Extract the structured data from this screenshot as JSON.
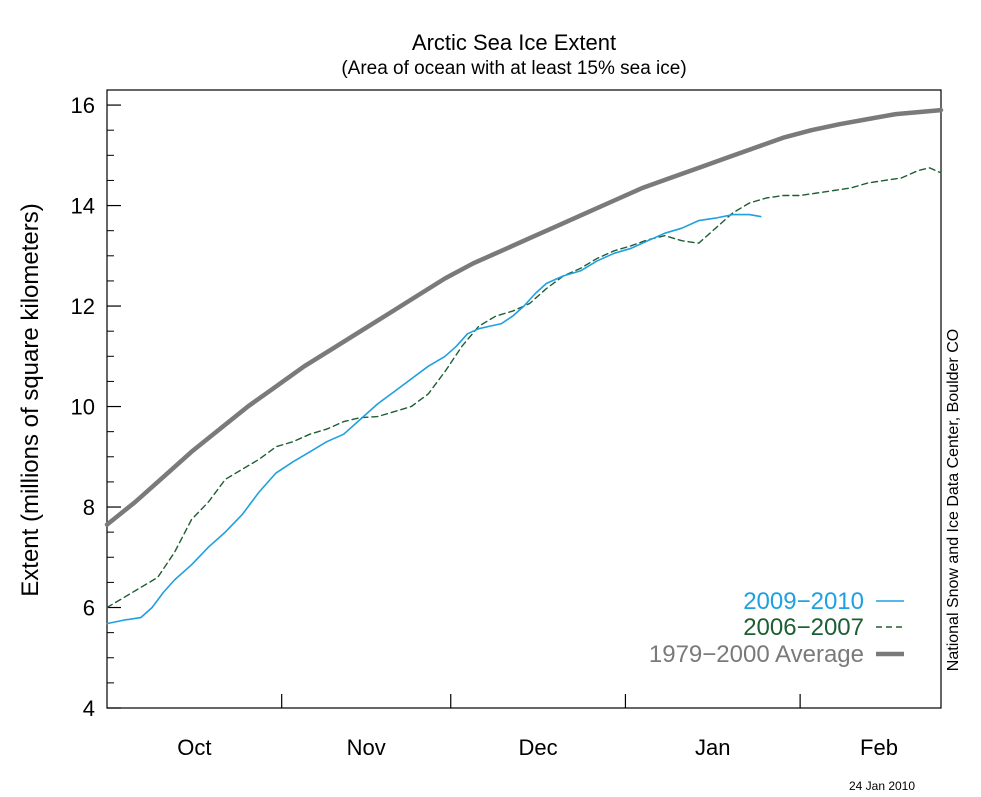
{
  "chart_data": {
    "type": "line",
    "title": "Arctic Sea Ice Extent",
    "subtitle": "(Area of ocean with at least 15% sea ice)",
    "ylabel": "Extent (millions of square kilometers)",
    "ylim": [
      4,
      16.3
    ],
    "yticks": [
      "4",
      "6",
      "8",
      "10",
      "12",
      "14",
      "16"
    ],
    "xlim": [
      0,
      148
    ],
    "month_labels": [
      "Oct",
      "Nov",
      "Dec",
      "Jan",
      "Feb"
    ],
    "grid": false,
    "legend_position": "bottom-right",
    "series": [
      {
        "name": "2009−2010",
        "color": "#1fa0e0",
        "style": "solid",
        "width": 1.6,
        "points": [
          [
            0,
            5.68
          ],
          [
            3,
            5.75
          ],
          [
            6,
            5.8
          ],
          [
            8,
            6.0
          ],
          [
            10,
            6.3
          ],
          [
            12,
            6.55
          ],
          [
            15,
            6.85
          ],
          [
            18,
            7.2
          ],
          [
            21,
            7.5
          ],
          [
            24,
            7.85
          ],
          [
            27,
            8.3
          ],
          [
            30,
            8.68
          ],
          [
            33,
            8.9
          ],
          [
            36,
            9.1
          ],
          [
            39,
            9.3
          ],
          [
            42,
            9.45
          ],
          [
            45,
            9.75
          ],
          [
            48,
            10.05
          ],
          [
            51,
            10.3
          ],
          [
            54,
            10.55
          ],
          [
            57,
            10.8
          ],
          [
            60,
            11.0
          ],
          [
            62,
            11.2
          ],
          [
            64,
            11.45
          ],
          [
            66,
            11.55
          ],
          [
            68,
            11.6
          ],
          [
            70,
            11.65
          ],
          [
            72,
            11.8
          ],
          [
            74,
            12.0
          ],
          [
            76,
            12.25
          ],
          [
            78,
            12.45
          ],
          [
            81,
            12.6
          ],
          [
            84,
            12.7
          ],
          [
            87,
            12.9
          ],
          [
            90,
            13.05
          ],
          [
            93,
            13.15
          ],
          [
            96,
            13.3
          ],
          [
            99,
            13.45
          ],
          [
            102,
            13.55
          ],
          [
            105,
            13.7
          ],
          [
            108,
            13.75
          ],
          [
            111,
            13.82
          ],
          [
            114,
            13.82
          ],
          [
            116,
            13.78
          ]
        ]
      },
      {
        "name": "2006−2007",
        "color": "#1e5e34",
        "style": "dashed",
        "width": 1.4,
        "points": [
          [
            0,
            6.0
          ],
          [
            3,
            6.2
          ],
          [
            6,
            6.4
          ],
          [
            9,
            6.6
          ],
          [
            12,
            7.1
          ],
          [
            15,
            7.75
          ],
          [
            18,
            8.1
          ],
          [
            21,
            8.55
          ],
          [
            24,
            8.75
          ],
          [
            27,
            8.95
          ],
          [
            30,
            9.2
          ],
          [
            33,
            9.3
          ],
          [
            36,
            9.45
          ],
          [
            39,
            9.55
          ],
          [
            42,
            9.7
          ],
          [
            45,
            9.78
          ],
          [
            48,
            9.8
          ],
          [
            51,
            9.9
          ],
          [
            54,
            10.0
          ],
          [
            57,
            10.25
          ],
          [
            60,
            10.7
          ],
          [
            63,
            11.2
          ],
          [
            66,
            11.6
          ],
          [
            69,
            11.8
          ],
          [
            72,
            11.9
          ],
          [
            75,
            12.05
          ],
          [
            78,
            12.35
          ],
          [
            81,
            12.6
          ],
          [
            84,
            12.75
          ],
          [
            87,
            12.95
          ],
          [
            90,
            13.1
          ],
          [
            93,
            13.2
          ],
          [
            96,
            13.32
          ],
          [
            99,
            13.4
          ],
          [
            102,
            13.3
          ],
          [
            105,
            13.25
          ],
          [
            108,
            13.55
          ],
          [
            111,
            13.85
          ],
          [
            114,
            14.05
          ],
          [
            117,
            14.15
          ],
          [
            120,
            14.2
          ],
          [
            123,
            14.2
          ],
          [
            126,
            14.25
          ],
          [
            129,
            14.3
          ],
          [
            132,
            14.35
          ],
          [
            135,
            14.45
          ],
          [
            138,
            14.5
          ],
          [
            141,
            14.55
          ],
          [
            144,
            14.7
          ],
          [
            146,
            14.75
          ],
          [
            148,
            14.65
          ]
        ]
      },
      {
        "name": "1979−2000 Average",
        "color": "#7a7a7a",
        "style": "solid",
        "width": 4.5,
        "points": [
          [
            0,
            7.65
          ],
          [
            5,
            8.1
          ],
          [
            10,
            8.6
          ],
          [
            15,
            9.1
          ],
          [
            20,
            9.55
          ],
          [
            25,
            10.0
          ],
          [
            30,
            10.4
          ],
          [
            35,
            10.8
          ],
          [
            40,
            11.15
          ],
          [
            45,
            11.5
          ],
          [
            50,
            11.85
          ],
          [
            55,
            12.2
          ],
          [
            60,
            12.55
          ],
          [
            65,
            12.85
          ],
          [
            70,
            13.1
          ],
          [
            75,
            13.35
          ],
          [
            80,
            13.6
          ],
          [
            85,
            13.85
          ],
          [
            90,
            14.1
          ],
          [
            95,
            14.35
          ],
          [
            100,
            14.55
          ],
          [
            105,
            14.75
          ],
          [
            110,
            14.95
          ],
          [
            115,
            15.15
          ],
          [
            120,
            15.35
          ],
          [
            125,
            15.5
          ],
          [
            130,
            15.62
          ],
          [
            135,
            15.72
          ],
          [
            140,
            15.82
          ],
          [
            148,
            15.9
          ]
        ]
      }
    ]
  },
  "credit": "National Snow and Ice Data Center, Boulder CO",
  "date_stamp": "24 Jan 2010"
}
